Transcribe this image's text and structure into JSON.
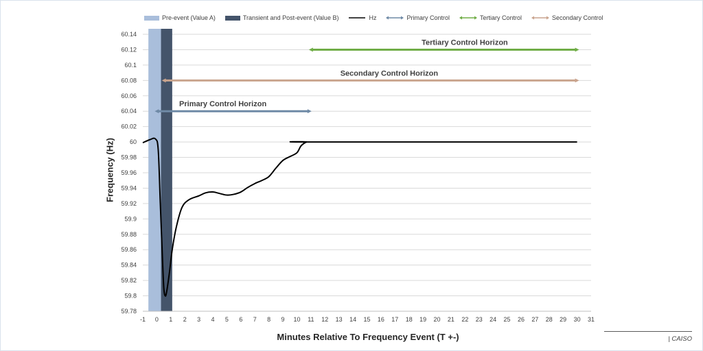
{
  "legend": [
    {
      "label": "Pre-event (Value A)",
      "kind": "rect",
      "color": "#a9bedb"
    },
    {
      "label": "Transient and Post-event (Value B)",
      "kind": "rect",
      "color": "#44546a"
    },
    {
      "label": "Hz",
      "kind": "line",
      "color": "#000000"
    },
    {
      "label": "Primary Control",
      "kind": "marker-line",
      "color": "#6f8aa6"
    },
    {
      "label": "Tertiary Control",
      "kind": "marker-line",
      "color": "#70ad47"
    },
    {
      "label": "Secondary Control",
      "kind": "marker-line",
      "color": "#c9a48e"
    }
  ],
  "source_label": "| CAISO",
  "chart_data": {
    "type": "line",
    "title": "",
    "xlabel": "Minutes Relative To Frequency Event (T +-)",
    "ylabel": "Frequency (Hz)",
    "xlim": [
      -1,
      31
    ],
    "ylim": [
      59.78,
      60.14
    ],
    "x_ticks": [
      -1,
      0,
      1,
      2,
      3,
      4,
      5,
      6,
      7,
      8,
      9,
      10,
      11,
      12,
      13,
      14,
      15,
      16,
      17,
      18,
      19,
      20,
      21,
      22,
      23,
      24,
      25,
      26,
      27,
      28,
      29,
      30,
      31
    ],
    "y_ticks": [
      59.78,
      59.8,
      59.82,
      59.84,
      59.86,
      59.88,
      59.9,
      59.92,
      59.94,
      59.96,
      59.98,
      60,
      60.02,
      60.04,
      60.06,
      60.08,
      60.1,
      60.12,
      60.14
    ],
    "y_tick_labels": [
      "59.78",
      "59.8",
      "59.82",
      "59.84",
      "59.86",
      "59.88",
      "59.9",
      "59.92",
      "59.94",
      "59.96",
      "59.98",
      "60",
      "60.02",
      "60.04",
      "60.06",
      "60.08",
      "60.1",
      "60.12",
      "60.14"
    ],
    "grid": true,
    "legend_position": "top",
    "bands": [
      {
        "name": "Pre-event (Value A)",
        "x_start": -0.6,
        "x_end": 0.3,
        "color": "#a9bedb"
      },
      {
        "name": "Transient and Post-event (Value B)",
        "x_start": 0.3,
        "x_end": 1.1,
        "color": "#44546a"
      }
    ],
    "series": [
      {
        "name": "Hz",
        "color": "#000000",
        "x": [
          -1,
          -0.5,
          -0.1,
          0.1,
          0.25,
          0.4,
          0.5,
          0.6,
          0.7,
          0.9,
          1.1,
          1.4,
          1.8,
          2.3,
          3,
          3.5,
          4,
          4.5,
          5,
          5.5,
          6,
          6.5,
          7,
          7.5,
          8,
          8.5,
          9,
          9.5,
          10,
          10.3,
          10.7,
          11,
          30
        ],
        "y": [
          59.999,
          60.003,
          60.004,
          59.99,
          59.92,
          59.85,
          59.81,
          59.8,
          59.805,
          59.83,
          59.86,
          59.89,
          59.915,
          59.925,
          59.93,
          59.934,
          59.935,
          59.933,
          59.931,
          59.932,
          59.935,
          59.941,
          59.946,
          59.95,
          59.955,
          59.966,
          59.976,
          59.981,
          59.986,
          59.995,
          60.0,
          60.0,
          60.0
        ]
      }
    ],
    "horizons": [
      {
        "name": "Primary Control",
        "label": "Primary Control Horizon",
        "y": 60.04,
        "x_start": 0,
        "x_end": 10.9,
        "color": "#6f8aa6"
      },
      {
        "name": "Secondary Control",
        "label": "Secondary Control Horizon",
        "y": 60.08,
        "x_start": 0.5,
        "x_end": 30,
        "color": "#c9a48e"
      },
      {
        "name": "Tertiary Control",
        "label": "Tertiary Control Horizon",
        "y": 60.12,
        "x_start": 11,
        "x_end": 30,
        "color": "#70ad47"
      }
    ]
  }
}
